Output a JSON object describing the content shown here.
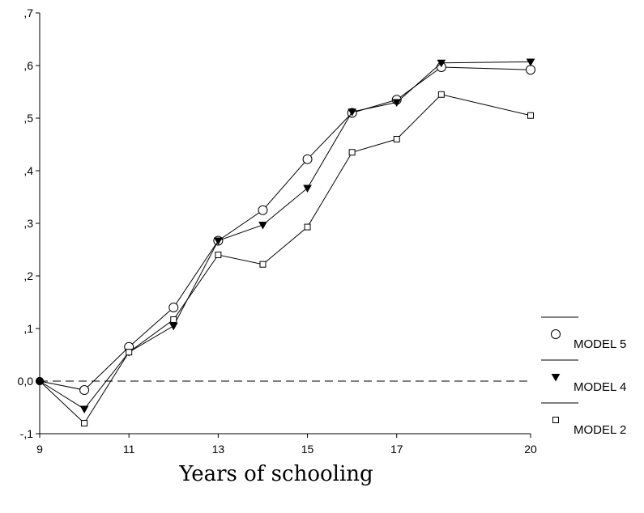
{
  "chart_data": {
    "type": "line",
    "xlabel": "Years of schooling",
    "ylabel": "",
    "xlim": [
      9,
      20
    ],
    "ylim": [
      -0.1,
      0.7
    ],
    "x_ticks": [
      "9",
      "11",
      "13",
      "15",
      "17",
      "20"
    ],
    "x_tick_values": [
      9,
      11,
      13,
      15,
      17,
      20
    ],
    "y_ticks": [
      "-,1",
      "0,0",
      ",1",
      ",2",
      ",3",
      ",4",
      ",5",
      ",6",
      ",7"
    ],
    "y_tick_values": [
      -0.1,
      0.0,
      0.1,
      0.2,
      0.3,
      0.4,
      0.5,
      0.6,
      0.7
    ],
    "reference_line": 0.0,
    "grid": false,
    "legend_position": "right",
    "x": [
      9,
      10,
      11,
      12,
      13,
      14,
      15,
      16,
      17,
      18,
      20
    ],
    "series": [
      {
        "name": "MODEL 5",
        "marker": "circle",
        "values": [
          0.0,
          -0.017,
          0.065,
          0.14,
          0.267,
          0.325,
          0.422,
          0.51,
          0.535,
          0.597,
          0.592
        ]
      },
      {
        "name": "MODEL 4",
        "marker": "triangle-down",
        "values": [
          0.0,
          -0.053,
          0.055,
          0.105,
          0.267,
          0.297,
          0.367,
          0.512,
          0.53,
          0.605,
          0.607
        ]
      },
      {
        "name": "MODEL 2",
        "marker": "square",
        "values": [
          0.0,
          -0.08,
          0.055,
          0.117,
          0.24,
          0.222,
          0.293,
          0.435,
          0.46,
          0.545,
          0.505
        ]
      }
    ]
  }
}
